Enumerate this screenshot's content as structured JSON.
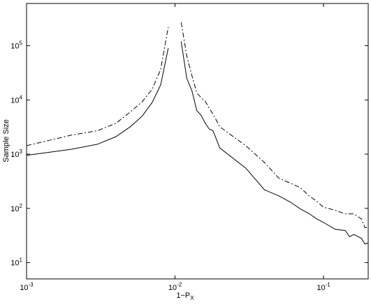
{
  "chart_data": {
    "type": "line",
    "xlabel": "1−P_X",
    "ylabel": "Sample Size",
    "xscale": "log",
    "yscale": "log",
    "xlim": [
      0.001,
      0.2
    ],
    "ylim": [
      5,
      600000
    ],
    "xticks": [
      {
        "value": 0.001,
        "label": "10^-3"
      },
      {
        "value": 0.01,
        "label": "10^-2"
      },
      {
        "value": 0.1,
        "label": "10^-1"
      }
    ],
    "yticks": [
      {
        "value": 10,
        "label": "10^1"
      },
      {
        "value": 100,
        "label": "10^2"
      },
      {
        "value": 1000,
        "label": "10^3"
      },
      {
        "value": 10000,
        "label": "10^4"
      },
      {
        "value": 100000,
        "label": "10^5"
      }
    ],
    "grid": false,
    "x": [
      0.001,
      0.002,
      0.003,
      0.004,
      0.005,
      0.006,
      0.007,
      0.008,
      0.009,
      0.01,
      0.011,
      0.012,
      0.013,
      0.014,
      0.015,
      0.016,
      0.017,
      0.018,
      0.019,
      0.02,
      0.03,
      0.04,
      0.05,
      0.06,
      0.07,
      0.08,
      0.09,
      0.1,
      0.12,
      0.14,
      0.15,
      0.16,
      0.18,
      0.19,
      0.2
    ],
    "series": [
      {
        "color": "#000000",
        "style": "solid",
        "values": [
          950,
          1230,
          1520,
          2100,
          3200,
          5000,
          8900,
          18800,
          90000,
          null,
          120000,
          25000,
          14700,
          6400,
          5200,
          3700,
          2900,
          2700,
          1870,
          1300,
          550,
          220,
          170,
          130,
          97,
          80,
          64,
          55,
          41,
          39,
          30,
          33,
          28,
          22,
          23
        ]
      },
      {
        "color": "#000000",
        "style": "dashdot",
        "values": [
          1430,
          2240,
          2700,
          3700,
          6000,
          9200,
          15600,
          36000,
          220000,
          null,
          270000,
          65000,
          28000,
          13500,
          11000,
          9400,
          7000,
          5500,
          4200,
          3200,
          1430,
          700,
          360,
          290,
          240,
          170,
          135,
          105,
          92,
          79,
          79,
          79,
          64,
          44,
          44
        ]
      }
    ]
  }
}
